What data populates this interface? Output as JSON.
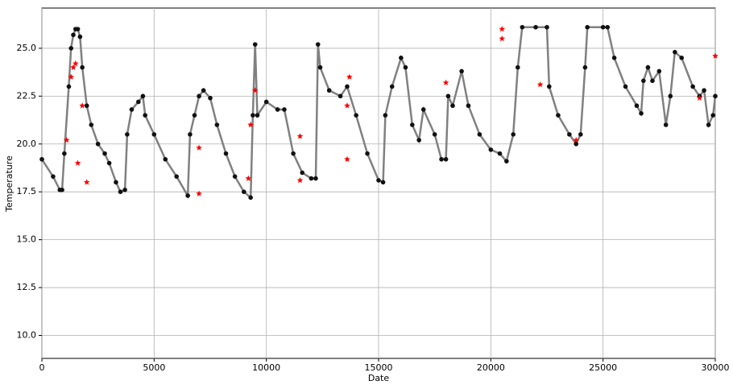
{
  "chart_data": {
    "type": "line",
    "xlabel": "Date",
    "ylabel": "Temperature",
    "xlim": [
      0,
      30000
    ],
    "ylim": [
      8.8,
      27.1
    ],
    "xticks": [
      0,
      5000,
      10000,
      15000,
      20000,
      25000,
      30000
    ],
    "yticks": [
      {
        "value": 10,
        "label": "10.0"
      },
      12.5,
      {
        "value": 15,
        "label": "15.0"
      },
      17.5,
      {
        "value": 20,
        "label": "20.0"
      },
      22.5,
      {
        "value": 25,
        "label": "25.0"
      }
    ],
    "grid": true,
    "series": [
      {
        "type": "line",
        "color": "#808080",
        "marker_color": "#111111",
        "x": [
          0,
          500,
          800,
          900,
          1000,
          1200,
          1300,
          1400,
          1500,
          1600,
          1700,
          1800,
          2000,
          2200,
          2500,
          2800,
          3000,
          3300,
          3500,
          3700,
          3800,
          4000,
          4300,
          4500,
          4600,
          5000,
          5500,
          6000,
          6500,
          6600,
          6800,
          7000,
          7200,
          7500,
          7800,
          8200,
          8600,
          9000,
          9300,
          9400,
          9500,
          9600,
          10000,
          10500,
          10800,
          11200,
          11600,
          12000,
          12200,
          12300,
          12400,
          12800,
          13300,
          13600,
          14000,
          14500,
          15000,
          15200,
          15300,
          15600,
          16000,
          16200,
          16500,
          16800,
          17000,
          17500,
          17800,
          18000,
          18100,
          18300,
          18700,
          19000,
          19500,
          20000,
          20400,
          20700,
          21000,
          21200,
          21400,
          22000,
          22500,
          22600,
          23000,
          23500,
          23800,
          24000,
          24200,
          24300,
          25000,
          25200,
          25500,
          26000,
          26500,
          26700,
          26800,
          27000,
          27200,
          27500,
          27800,
          28000,
          28200,
          28500,
          29000,
          29300,
          29500,
          29700,
          29900,
          30000
        ],
        "values": [
          19.2,
          18.3,
          17.6,
          17.6,
          19.5,
          23,
          25,
          25.7,
          26,
          26,
          25.6,
          24,
          22,
          21,
          20,
          19.5,
          19,
          18,
          17.5,
          17.6,
          20.5,
          21.8,
          22.2,
          22.5,
          21.5,
          20.5,
          19.2,
          18.3,
          17.3,
          20.5,
          21.5,
          22.5,
          22.8,
          22.4,
          21,
          19.5,
          18.3,
          17.5,
          17.2,
          21.5,
          25.2,
          21.5,
          22.2,
          21.8,
          21.8,
          19.5,
          18.5,
          18.2,
          18.2,
          25.2,
          24,
          22.8,
          22.5,
          23,
          21.5,
          19.5,
          18.1,
          18,
          21.5,
          23,
          24.5,
          24,
          21,
          20.2,
          21.8,
          20.5,
          19.2,
          19.2,
          22.5,
          22,
          23.8,
          22,
          20.5,
          19.7,
          19.5,
          19.1,
          20.5,
          24,
          26.1,
          26.1,
          26.1,
          23,
          21.5,
          20.5,
          20,
          20.5,
          24,
          26.1,
          26.1,
          26.1,
          24.5,
          23,
          22,
          21.6,
          23.3,
          24,
          23.3,
          23.8,
          21,
          22.5,
          24.8,
          24.5,
          23,
          22.5,
          22.8,
          21,
          21.5,
          22.5
        ]
      },
      {
        "type": "scatter",
        "color": "#ff0000",
        "x": [
          1100,
          1300,
          1400,
          1500,
          1600,
          1800,
          2000,
          7000,
          7000,
          9200,
          9300,
          9500,
          11500,
          11500,
          13600,
          13600,
          13700,
          18000,
          20500,
          20500,
          22200,
          23800,
          29300,
          30000
        ],
        "values": [
          20.2,
          23.5,
          24,
          24.2,
          19,
          22,
          18,
          17.4,
          19.8,
          18.2,
          21,
          22.8,
          18.1,
          20.4,
          19.2,
          22,
          23.5,
          23.2,
          26,
          25.5,
          23.1,
          20.2,
          22.4,
          24.6
        ]
      }
    ]
  }
}
